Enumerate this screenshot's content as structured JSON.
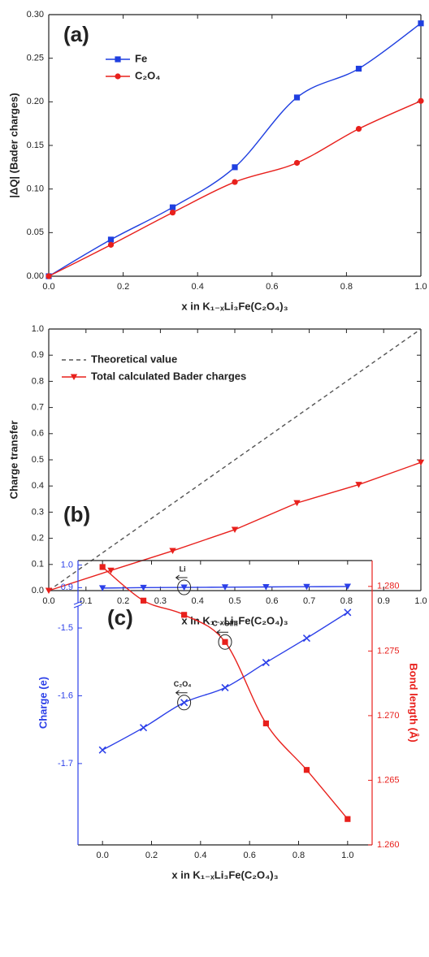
{
  "chart_data": [
    {
      "type": "line",
      "smooth": true,
      "panel_label": "(a)",
      "x_label": "x in K₁₋ₓLi₃Fe(C₂O₄)₃",
      "y_label": "|ΔQ| (Bader charges)",
      "x": [
        0,
        0.167,
        0.333,
        0.5,
        0.667,
        0.833,
        1
      ],
      "series": [
        {
          "name": "Fe",
          "color": "#1f3fe0",
          "marker": "square",
          "values": [
            0,
            0.042,
            0.079,
            0.125,
            0.205,
            0.238,
            0.29
          ]
        },
        {
          "name": "C₂O₄",
          "color": "#e8201c",
          "marker": "circle",
          "values": [
            0,
            0.036,
            0.073,
            0.108,
            0.13,
            0.169,
            0.201
          ]
        }
      ],
      "xlim": [
        0,
        1
      ],
      "xticks": [
        {
          "value": 0,
          "label": "0.0"
        },
        0.2,
        0.4,
        0.6,
        0.8,
        {
          "value": 1,
          "label": "1.0"
        }
      ],
      "ylim": [
        0,
        0.3
      ],
      "yticks": [
        {
          "value": 0,
          "label": "0.00"
        },
        0.05,
        {
          "value": 0.1,
          "label": "0.10"
        },
        0.15,
        {
          "value": 0.2,
          "label": "0.20"
        },
        0.25,
        {
          "value": 0.3,
          "label": "0.30"
        }
      ],
      "legend": "center left",
      "grid": false
    },
    {
      "type": "line",
      "smooth": false,
      "panel_label": "(b)",
      "x_label": "x in K₁₋ₓLi₃Fe(C₂O₄)₃",
      "y_label": "Charge transfer",
      "x": [
        0,
        0.167,
        0.333,
        0.5,
        0.667,
        0.833,
        1
      ],
      "series": [
        {
          "name": "Theoretical value",
          "color": "#555555",
          "dash": true,
          "x": [
            0,
            1
          ],
          "values": [
            0,
            1
          ]
        },
        {
          "name": "Total calculated Bader charges",
          "color": "#e8201c",
          "marker": "triangle-down",
          "values": [
            0,
            0.077,
            0.152,
            0.233,
            0.335,
            0.405,
            0.49
          ]
        }
      ],
      "xlim": [
        0,
        1
      ],
      "xticks": [
        {
          "value": 0,
          "label": "0.0"
        },
        0.1,
        0.2,
        0.3,
        0.4,
        0.5,
        0.6,
        0.7,
        0.8,
        0.9,
        {
          "value": 1,
          "label": "1.0"
        }
      ],
      "ylim": [
        0,
        1
      ],
      "yticks": [
        {
          "value": 0,
          "label": "0.0"
        },
        0.1,
        0.2,
        0.3,
        0.4,
        0.5,
        0.6,
        0.7,
        0.8,
        0.9,
        {
          "value": 1,
          "label": "1.0"
        }
      ],
      "legend": "upper left",
      "grid": false
    },
    {
      "type": "line",
      "smooth": true,
      "panel_label": "(c)",
      "axis_break": true,
      "x_label": "x in K₁₋ₓLi₃Fe(C₂O₄)₃",
      "y_label": "Charge (e)",
      "y2_label": "Bond length (Å)",
      "annotations": [
        "Li",
        "C - OI/II",
        "C₂O₄"
      ],
      "x": [
        0,
        0.167,
        0.333,
        0.5,
        0.667,
        0.833,
        1
      ],
      "series": [
        {
          "color": "#2b3fe8",
          "marker": "triangle-down",
          "axis": "y_upper",
          "values": [
            0.898,
            0.9,
            0.901,
            0.902,
            0.903,
            0.904,
            0.905
          ]
        },
        {
          "color": "#2b3fe8",
          "marker": "cross",
          "axis": "y",
          "values": [
            -1.68,
            -1.647,
            -1.61,
            -1.588,
            -1.551,
            -1.515,
            -1.477
          ]
        },
        {
          "color": "#e8201c",
          "marker": "square",
          "axis": "y2",
          "values": [
            1.2815,
            1.2789,
            1.2778,
            1.2757,
            1.2694,
            1.2658,
            1.262
          ]
        }
      ],
      "xlim": [
        -0.1,
        1.1
      ],
      "xticks": [
        {
          "value": 0,
          "label": "0.0"
        },
        0.2,
        0.4,
        0.6,
        0.8,
        {
          "value": 1,
          "label": "1.0"
        }
      ],
      "ylim": [
        -1.82,
        -1.47
      ],
      "yticks": [
        -1.7,
        -1.6,
        -1.5
      ],
      "ylim_upper": [
        0.84,
        1.02
      ],
      "yticks_upper": [
        0.9,
        {
          "value": 1,
          "label": "1.0"
        }
      ],
      "y2lim": [
        1.26,
        1.282
      ],
      "y2ticks": [
        {
          "value": 1.26,
          "label": "1.260"
        },
        1.265,
        {
          "value": 1.27,
          "label": "1.270"
        },
        1.275,
        {
          "value": 1.28,
          "label": "1.280"
        }
      ],
      "grid": false
    }
  ]
}
